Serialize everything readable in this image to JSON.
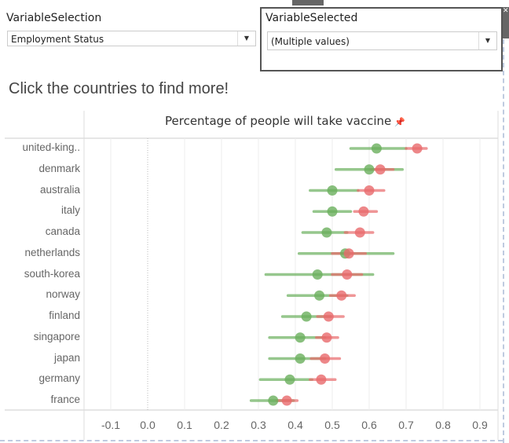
{
  "filters": {
    "variable_selection": {
      "label": "VariableSelection",
      "value": "Employment Status"
    },
    "variable_selected": {
      "label": "VariableSelected",
      "value": "(Multiple values)"
    }
  },
  "headline": "Click the countries to find more!",
  "chart_data": {
    "type": "scatter",
    "title": "Percentage of people will take vaccine",
    "xlabel": "",
    "ylabel": "",
    "xlim": [
      -0.17,
      0.95
    ],
    "xticks": [
      "-0.1",
      "0.0",
      "0.1",
      "0.2",
      "0.3",
      "0.4",
      "0.5",
      "0.6",
      "0.7",
      "0.8",
      "0.9"
    ],
    "xtick_values": [
      -0.1,
      0,
      0.1,
      0.2,
      0.3,
      0.4,
      0.5,
      0.6,
      0.7,
      0.8,
      0.9
    ],
    "grid": true,
    "categories": [
      "united-king..",
      "denmark",
      "australia",
      "italy",
      "canada",
      "netherlands",
      "south-korea",
      "norway",
      "finland",
      "singapore",
      "japan",
      "germany",
      "france"
    ],
    "series": [
      {
        "color": "#6aaf5c",
        "values": [
          0.62,
          0.6,
          0.5,
          0.5,
          0.485,
          0.535,
          0.46,
          0.465,
          0.43,
          0.413,
          0.413,
          0.385,
          0.34
        ],
        "low": [
          0.55,
          0.51,
          0.44,
          0.45,
          0.42,
          0.41,
          0.32,
          0.38,
          0.365,
          0.33,
          0.33,
          0.305,
          0.28
        ],
        "high": [
          0.7,
          0.69,
          0.57,
          0.55,
          0.54,
          0.665,
          0.61,
          0.54,
          0.495,
          0.48,
          0.48,
          0.445,
          0.395
        ]
      },
      {
        "color": "#e8696b",
        "values": [
          0.73,
          0.63,
          0.6,
          0.585,
          0.575,
          0.545,
          0.54,
          0.525,
          0.49,
          0.485,
          0.48,
          0.47,
          0.377
        ],
        "low": [
          0.7,
          0.605,
          0.57,
          0.56,
          0.535,
          0.5,
          0.5,
          0.495,
          0.46,
          0.457,
          0.443,
          0.44,
          0.35
        ],
        "high": [
          0.755,
          0.665,
          0.64,
          0.62,
          0.61,
          0.59,
          0.58,
          0.56,
          0.53,
          0.515,
          0.52,
          0.508,
          0.405
        ]
      }
    ]
  }
}
